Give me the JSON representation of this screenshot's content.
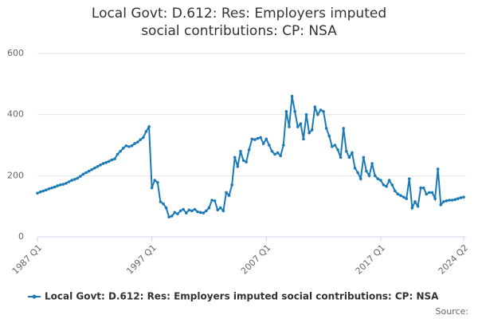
{
  "chart_data": {
    "type": "line",
    "title": "Local Govt: D.612: Res: Employers imputed social contributions: CP: NSA",
    "source": "Source:",
    "categories": [
      "1987 Q1",
      null,
      null,
      null,
      null,
      null,
      null,
      null,
      null,
      null,
      null,
      null,
      null,
      null,
      null,
      null,
      null,
      null,
      null,
      null,
      null,
      null,
      null,
      null,
      null,
      null,
      null,
      null,
      null,
      null,
      null,
      null,
      null,
      null,
      null,
      null,
      null,
      null,
      null,
      null,
      "1997 Q1",
      null,
      null,
      null,
      null,
      null,
      null,
      null,
      null,
      null,
      null,
      null,
      null,
      null,
      null,
      null,
      null,
      null,
      null,
      null,
      null,
      null,
      null,
      null,
      null,
      null,
      null,
      null,
      null,
      null,
      null,
      null,
      null,
      null,
      null,
      null,
      null,
      null,
      null,
      null,
      "2007 Q1",
      null,
      null,
      null,
      null,
      null,
      null,
      null,
      null,
      null,
      null,
      null,
      null,
      null,
      null,
      null,
      null,
      null,
      null,
      null,
      null,
      null,
      null,
      null,
      null,
      null,
      null,
      null,
      null,
      null,
      null,
      null,
      null,
      null,
      null,
      null,
      null,
      null,
      null,
      null,
      "2017 Q1",
      null,
      null,
      null,
      null,
      null,
      null,
      null,
      null,
      null,
      null,
      null,
      null,
      null,
      null,
      null,
      null,
      null,
      null,
      null,
      null,
      null,
      null,
      null,
      null,
      null,
      null,
      null,
      null,
      "2024 Q2"
    ],
    "series": [
      {
        "name": "Local Govt: D.612: Res: Employers imputed social contributions: CP: NSA",
        "color": "#1a7ab8",
        "values": [
          143,
          147,
          150,
          153,
          157,
          160,
          163,
          167,
          170,
          172,
          175,
          180,
          185,
          188,
          192,
          198,
          205,
          210,
          215,
          220,
          225,
          230,
          235,
          240,
          243,
          247,
          252,
          255,
          270,
          280,
          290,
          298,
          295,
          298,
          305,
          310,
          318,
          325,
          345,
          360,
          160,
          185,
          178,
          115,
          108,
          95,
          65,
          68,
          80,
          75,
          85,
          90,
          78,
          88,
          85,
          90,
          82,
          80,
          78,
          85,
          95,
          120,
          118,
          88,
          95,
          85,
          145,
          135,
          170,
          260,
          230,
          280,
          250,
          245,
          285,
          320,
          318,
          322,
          325,
          305,
          320,
          300,
          280,
          270,
          275,
          265,
          300,
          410,
          360,
          460,
          410,
          360,
          370,
          320,
          400,
          340,
          350,
          425,
          400,
          415,
          410,
          355,
          330,
          295,
          300,
          285,
          260,
          355,
          280,
          260,
          275,
          225,
          210,
          190,
          260,
          215,
          200,
          240,
          200,
          190,
          185,
          170,
          165,
          185,
          170,
          150,
          140,
          135,
          130,
          125,
          190,
          95,
          115,
          100,
          160,
          160,
          140,
          145,
          145,
          125,
          222,
          105,
          115,
          118,
          120,
          120,
          122,
          125,
          128,
          130
        ]
      }
    ],
    "ylim": [
      0,
      600
    ],
    "yticks": [
      0,
      200,
      400,
      600
    ],
    "grid": true,
    "legend": "bottom"
  }
}
